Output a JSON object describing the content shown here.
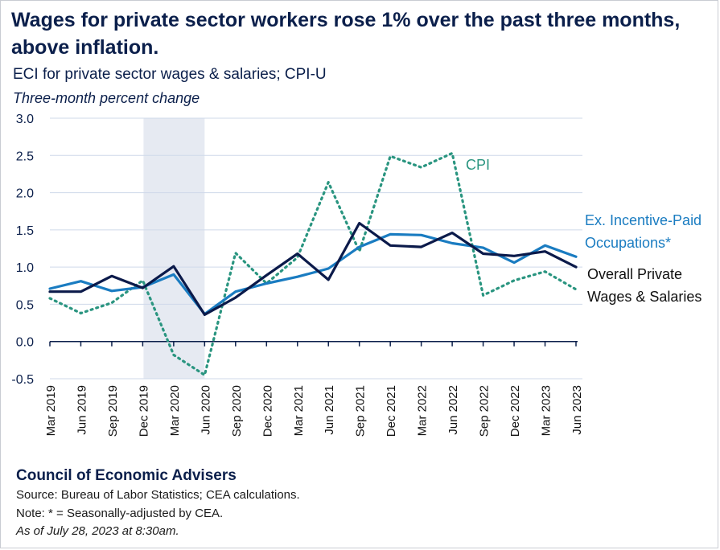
{
  "title": "Wages for private sector workers rose 1% over the past three months, above inflation.",
  "subtitle": "ECI for private sector wages & salaries; CPI-U",
  "units": "Three-month percent change",
  "footer": {
    "org": "Council of Economic Advisers",
    "source": "Source: Bureau of Labor Statistics; CEA calculations.",
    "note": "Note: * = Seasonally-adjusted by CEA.",
    "as_of": "As of July 28, 2023 at 8:30am."
  },
  "colors": {
    "overall": "#0b1a4a",
    "ex_incentive": "#1a7cc1",
    "cpi": "#2a9580",
    "recession_shade": "#e6eaf2",
    "grid": "#cfd9ea",
    "text": "#0b1f4b"
  },
  "chart_data": {
    "type": "line",
    "x": [
      "Mar 2019",
      "Jun 2019",
      "Sep 2019",
      "Dec 2019",
      "Mar 2020",
      "Jun 2020",
      "Sep 2020",
      "Dec 2020",
      "Mar 2021",
      "Jun 2021",
      "Sep 2021",
      "Dec 2021",
      "Mar 2022",
      "Jun 2022",
      "Sep 2022",
      "Dec 2022",
      "Mar 2023",
      "Jun 2023"
    ],
    "ylim": [
      -0.5,
      3.0
    ],
    "yticks": [
      "3.0",
      "2.5",
      "2.0",
      "1.5",
      "1.0",
      "0.5",
      "0.0",
      "-0.5"
    ],
    "ytick_values": [
      3.0,
      2.5,
      2.0,
      1.5,
      1.0,
      0.5,
      0.0,
      -0.5
    ],
    "shaded_period": [
      "Dec 2019",
      "Jun 2020"
    ],
    "grid": true,
    "series": [
      {
        "key": "cpi",
        "name": "CPI",
        "style": "dotted",
        "values": [
          0.58,
          0.38,
          0.52,
          0.82,
          -0.18,
          -0.45,
          1.19,
          0.78,
          1.13,
          2.14,
          1.21,
          2.49,
          2.34,
          2.53,
          0.62,
          0.82,
          0.94,
          0.7
        ]
      },
      {
        "key": "ex_incentive",
        "name": "Ex. Incentive-Paid Occupations*",
        "label_lines": [
          "Ex. Incentive-Paid",
          "Occupations*"
        ],
        "style": "solid",
        "values": [
          0.71,
          0.81,
          0.68,
          0.73,
          0.9,
          0.37,
          0.67,
          0.78,
          0.87,
          0.98,
          1.27,
          1.44,
          1.43,
          1.32,
          1.26,
          1.06,
          1.29,
          1.14
        ]
      },
      {
        "key": "overall",
        "name": "Overall Private Wages & Salaries",
        "label_lines": [
          "Overall Private",
          "Wages & Salaries"
        ],
        "style": "solid",
        "values": [
          0.67,
          0.67,
          0.88,
          0.72,
          1.01,
          0.36,
          0.59,
          0.89,
          1.18,
          0.83,
          1.59,
          1.29,
          1.27,
          1.46,
          1.18,
          1.15,
          1.21,
          1.0
        ]
      }
    ]
  }
}
